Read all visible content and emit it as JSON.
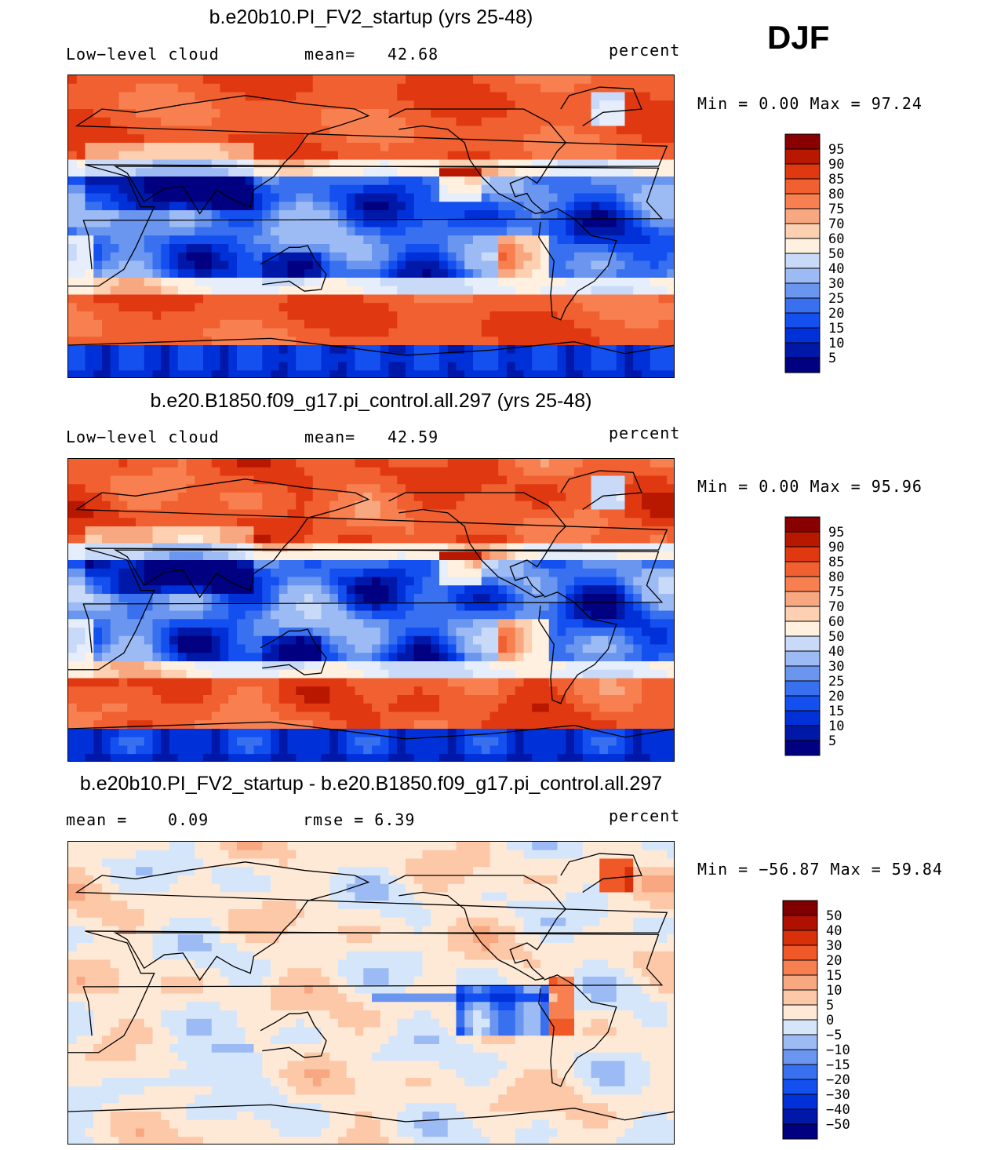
{
  "season": "DJF",
  "colors": {
    "abs_scale": [
      "#000080",
      "#0018a8",
      "#0030d8",
      "#1450f0",
      "#3870f0",
      "#6a96f0",
      "#9cbaf4",
      "#c8daf8",
      "#e6eefc",
      "#fff0e0",
      "#fcd0b0",
      "#f8a880",
      "#f88050",
      "#f06030",
      "#e03810",
      "#b81800",
      "#880000"
    ],
    "diff_scale": [
      "#000080",
      "#0018a8",
      "#0030d8",
      "#1450f0",
      "#3870f0",
      "#6a96f0",
      "#9cbaf4",
      "#d6e6fa",
      "#fde9d6",
      "#fcc8a8",
      "#f8a880",
      "#f88050",
      "#f05828",
      "#d83008",
      "#b01000",
      "#800000"
    ],
    "coast": "#000000"
  },
  "chart_data": [
    {
      "type": "heatmap",
      "title": "b.e20b10.PI_FV2_startup (yrs 25-48)",
      "left_label": "Low−level cloud",
      "stat_label": "mean=",
      "stat_value": "42.68",
      "units": "percent",
      "range_text": "Min =     0.00 Max =    97.24",
      "min": 0.0,
      "max": 97.24,
      "colorbar_levels": [
        "95",
        "90",
        "85",
        "80",
        "75",
        "70",
        "60",
        "50",
        "40",
        "30",
        "25",
        "20",
        "15",
        "10",
        "5"
      ]
    },
    {
      "type": "heatmap",
      "title": "b.e20.B1850.f09_g17.pi_control.all.297 (yrs 25-48)",
      "left_label": "Low−level cloud",
      "stat_label": "mean=",
      "stat_value": "42.59",
      "units": "percent",
      "range_text": "Min =     0.00 Max =    95.96",
      "min": 0.0,
      "max": 95.96,
      "colorbar_levels": [
        "95",
        "90",
        "85",
        "80",
        "75",
        "70",
        "60",
        "50",
        "40",
        "30",
        "25",
        "20",
        "15",
        "10",
        "5"
      ]
    },
    {
      "type": "heatmap",
      "title": "b.e20b10.PI_FV2_startup - b.e20.B1850.f09_g17.pi_control.all.297",
      "left_label": "mean =",
      "stat_label": "0.09",
      "stat_value": "rmse =    6.39",
      "units": "percent",
      "range_text": "Min = −56.87 Max =    59.84",
      "min": -56.87,
      "max": 59.84,
      "colorbar_levels": [
        "50",
        "40",
        "30",
        "20",
        "15",
        "10",
        "5",
        "0",
        "−5",
        "−10",
        "−15",
        "−20",
        "−30",
        "−40",
        "−50"
      ]
    }
  ]
}
